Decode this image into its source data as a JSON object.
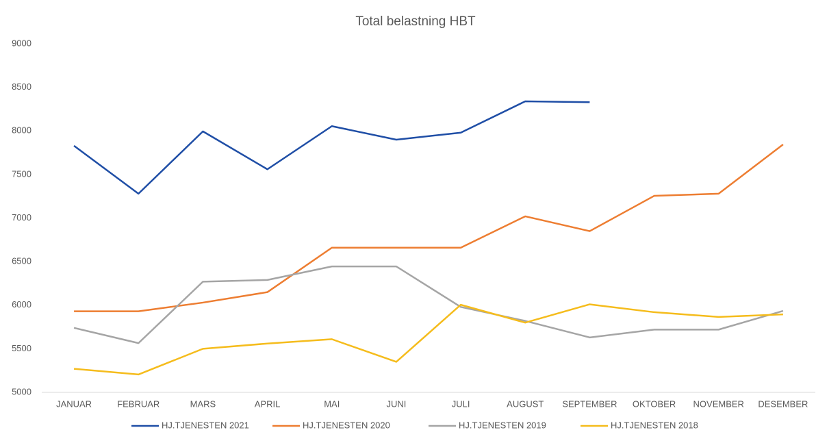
{
  "chart_data": {
    "type": "line",
    "title": "Total belastning HBT",
    "categories": [
      "JANUAR",
      "FEBRUAR",
      "MARS",
      "APRIL",
      "MAI",
      "JUNI",
      "JULI",
      "AUGUST",
      "SEPTEMBER",
      "OKTOBER",
      "NOVEMBER",
      "DESEMBER"
    ],
    "series": [
      {
        "name": "HJ.TJENESTEN 2021",
        "color": "#1f4ea6",
        "values": [
          7830,
          7280,
          7995,
          7560,
          8055,
          7900,
          7980,
          8340,
          8330,
          null,
          null,
          null
        ]
      },
      {
        "name": "HJ.TJENESTEN 2020",
        "color": "#ed7d31",
        "values": [
          5930,
          5930,
          6030,
          6150,
          6660,
          6660,
          6660,
          7020,
          6850,
          7255,
          7280,
          7845
        ]
      },
      {
        "name": "HJ.TJENESTEN 2019",
        "color": "#a5a5a5",
        "values": [
          5740,
          5565,
          6270,
          6290,
          6445,
          6445,
          5980,
          5820,
          5630,
          5720,
          5720,
          5935
        ]
      },
      {
        "name": "HJ.TJENESTEN 2018",
        "color": "#f5bc1c",
        "values": [
          5270,
          5205,
          5500,
          5560,
          5610,
          5350,
          6005,
          5800,
          6010,
          5920,
          5865,
          5895
        ]
      }
    ],
    "ylim": [
      5000,
      9000
    ],
    "yticks": [
      5000,
      5500,
      6000,
      6500,
      7000,
      7500,
      8000,
      8500,
      9000
    ],
    "grid": false,
    "legend": "bottom"
  }
}
